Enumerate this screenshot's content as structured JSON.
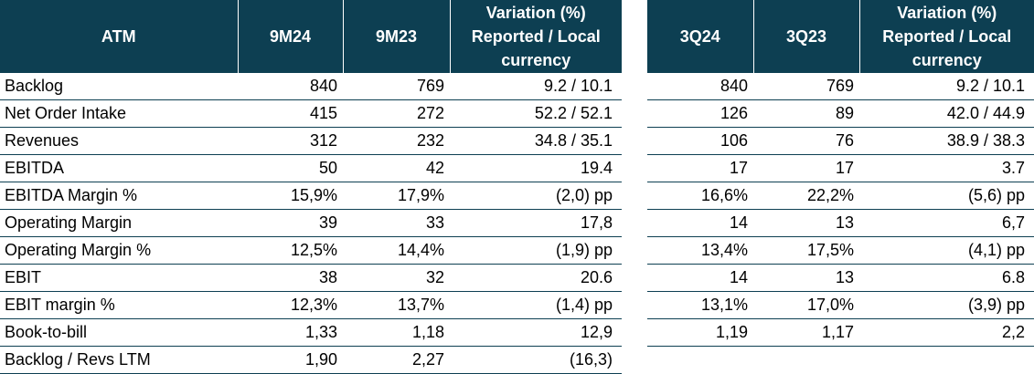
{
  "left": {
    "headers": [
      "ATM",
      "9M24",
      "9M23",
      "Variation (%) Reported / Local currency"
    ],
    "rows": [
      {
        "label": "Backlog",
        "a": "840",
        "b": "769",
        "var": "9.2 / 10.1"
      },
      {
        "label": "Net Order Intake",
        "a": "415",
        "b": "272",
        "var": "52.2 / 52.1"
      },
      {
        "label": "Revenues",
        "a": "312",
        "b": "232",
        "var": "34.8 / 35.1"
      },
      {
        "label": "EBITDA",
        "a": "50",
        "b": "42",
        "var": "19.4"
      },
      {
        "label": "EBITDA Margin %",
        "a": "15,9%",
        "b": "17,9%",
        "var": "(2,0) pp"
      },
      {
        "label": "Operating Margin",
        "a": "39",
        "b": "33",
        "var": "17,8"
      },
      {
        "label": "Operating Margin %",
        "a": "12,5%",
        "b": "14,4%",
        "var": "(1,9) pp"
      },
      {
        "label": "EBIT",
        "a": "38",
        "b": "32",
        "var": "20.6"
      },
      {
        "label": "EBIT margin %",
        "a": "12,3%",
        "b": "13,7%",
        "var": "(1,4) pp"
      },
      {
        "label": "Book-to-bill",
        "a": "1,33",
        "b": "1,18",
        "var": "12,9"
      },
      {
        "label": "Backlog / Revs LTM",
        "a": "1,90",
        "b": "2,27",
        "var": "(16,3)"
      }
    ]
  },
  "right": {
    "headers": [
      "3Q24",
      "3Q23",
      "Variation (%) Reported / Local currency"
    ],
    "rows": [
      {
        "a": "840",
        "b": "769",
        "var": "9.2 / 10.1"
      },
      {
        "a": "126",
        "b": "89",
        "var": "42.0 / 44.9"
      },
      {
        "a": "106",
        "b": "76",
        "var": "38.9 / 38.3"
      },
      {
        "a": "17",
        "b": "17",
        "var": "3.7"
      },
      {
        "a": "16,6%",
        "b": "22,2%",
        "var": "(5,6) pp"
      },
      {
        "a": "14",
        "b": "13",
        "var": "6,7"
      },
      {
        "a": "13,4%",
        "b": "17,5%",
        "var": "(4,1) pp"
      },
      {
        "a": "14",
        "b": "13",
        "var": "6.8"
      },
      {
        "a": "13,1%",
        "b": "17,0%",
        "var": "(3,9) pp"
      },
      {
        "a": "1,19",
        "b": "1,17",
        "var": "2,2"
      }
    ]
  },
  "colors": {
    "header_bg": "#0d3f52",
    "header_text": "#ffffff",
    "rule": "#0d3f52"
  }
}
